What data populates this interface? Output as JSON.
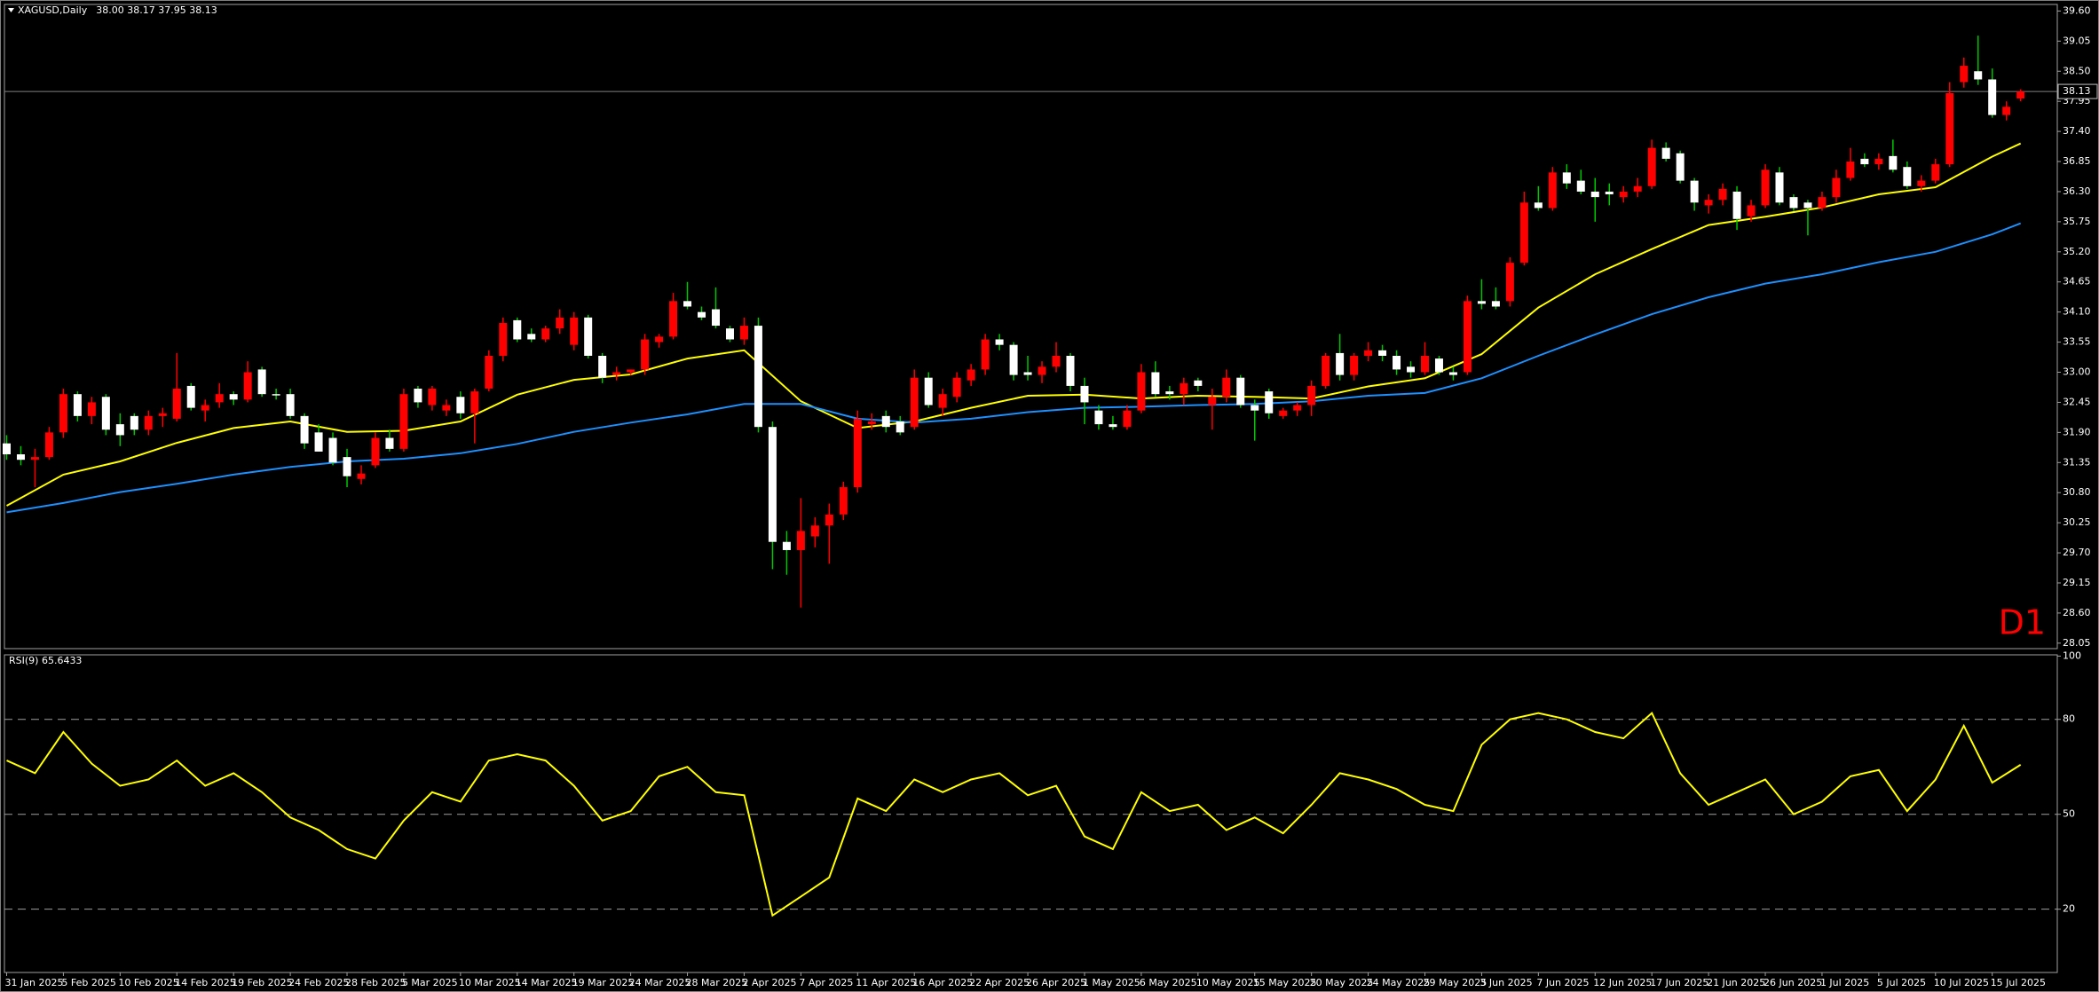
{
  "chart_data": [
    {
      "type": "candlestick",
      "title": "XAGUSD,Daily",
      "ohlc_text": "38.00 38.17 37.95 38.13",
      "timeframe_label": "D1",
      "ylim": [
        27.95,
        39.72
      ],
      "yticks": [
        {
          "value": 39.6,
          "label": "39.60"
        },
        39.05,
        {
          "value": 38.5,
          "label": "38.50"
        },
        37.95,
        {
          "value": 37.4,
          "label": "37.40"
        },
        36.85,
        {
          "value": 36.3,
          "label": "36.30"
        },
        35.75,
        {
          "value": 35.2,
          "label": "35.20"
        },
        34.65,
        {
          "value": 34.1,
          "label": "34.10"
        },
        33.55,
        {
          "value": 33,
          "label": "33.00"
        },
        32.45,
        {
          "value": 31.9,
          "label": "31.90"
        },
        31.35,
        {
          "value": 30.8,
          "label": "30.80"
        },
        30.25,
        {
          "value": 29.7,
          "label": "29.70"
        },
        29.15,
        {
          "value": 28.6,
          "label": "28.60"
        },
        28.05
      ],
      "price_line": 38.13,
      "up_color": "#ff0000",
      "down_color": "#ffffff",
      "up_wick_color": "#ff0000",
      "down_wick_color": "#00c800",
      "categories": [
        "31 Jan 2025",
        null,
        null,
        null,
        "5 Feb 2025",
        null,
        null,
        null,
        "10 Feb 2025",
        null,
        null,
        null,
        "14 Feb 2025",
        null,
        null,
        null,
        "19 Feb 2025",
        null,
        null,
        null,
        "24 Feb 2025",
        null,
        null,
        null,
        "28 Feb 2025",
        null,
        null,
        null,
        "5 Mar 2025",
        null,
        null,
        null,
        "10 Mar 2025",
        null,
        null,
        null,
        "14 Mar 2025",
        null,
        null,
        null,
        "19 Mar 2025",
        null,
        null,
        null,
        "24 Mar 2025",
        null,
        null,
        null,
        "28 Mar 2025",
        null,
        null,
        null,
        "2 Apr 2025",
        null,
        null,
        null,
        "7 Apr 2025",
        null,
        null,
        null,
        "11 Apr 2025",
        null,
        null,
        null,
        "16 Apr 2025",
        null,
        null,
        null,
        "22 Apr 2025",
        null,
        null,
        null,
        "26 Apr 2025",
        null,
        null,
        null,
        "1 May 2025",
        null,
        null,
        null,
        "6 May 2025",
        null,
        null,
        null,
        "10 May 2025",
        null,
        null,
        null,
        "15 May 2025",
        null,
        null,
        null,
        "20 May 2025",
        null,
        null,
        null,
        "24 May 2025",
        null,
        null,
        null,
        "29 May 2025",
        null,
        null,
        null,
        "3 Jun 2025",
        null,
        null,
        null,
        "7 Jun 2025",
        null,
        null,
        null,
        "12 Jun 2025",
        null,
        null,
        null,
        "17 Jun 2025",
        null,
        null,
        null,
        "21 Jun 2025",
        null,
        null,
        null,
        "26 Jun 2025",
        null,
        null,
        null,
        "1 Jul 2025",
        null,
        null,
        null,
        "5 Jul 2025",
        null,
        null,
        null,
        "10 Jul 2025",
        null,
        null,
        null,
        "15 Jul 2025",
        null,
        null
      ],
      "open": [
        31.7,
        31.5,
        31.4,
        31.45,
        31.9,
        32.6,
        32.2,
        32.55,
        32.05,
        32.2,
        31.95,
        32.2,
        32.15,
        32.75,
        32.3,
        32.45,
        32.6,
        32.5,
        33.05,
        32.6,
        32.6,
        32.2,
        31.9,
        31.8,
        31.45,
        31.05,
        31.3,
        31.8,
        31.6,
        32.7,
        32.4,
        32.3,
        32.55,
        32.25,
        32.7,
        33.3,
        33.95,
        33.7,
        33.6,
        33.8,
        33.5,
        34.0,
        33.3,
        32.95,
        33.0,
        33.05,
        33.55,
        33.65,
        34.3,
        34.1,
        34.15,
        33.8,
        33.6,
        33.85,
        32.0,
        29.9,
        29.75,
        30.0,
        30.2,
        30.4,
        30.9,
        32.05,
        32.2,
        32.1,
        32.0,
        32.9,
        32.35,
        32.55,
        32.85,
        33.05,
        33.6,
        33.5,
        33.0,
        32.95,
        33.1,
        33.3,
        32.75,
        32.3,
        32.05,
        32.0,
        32.3,
        33.0,
        32.65,
        32.6,
        32.85,
        32.4,
        32.55,
        32.9,
        32.4,
        32.65,
        32.2,
        32.3,
        32.4,
        32.75,
        33.35,
        32.95,
        33.3,
        33.4,
        33.3,
        33.1,
        33.0,
        33.25,
        33.0,
        33.0,
        34.3,
        34.3,
        34.3,
        35.0,
        36.1,
        36.0,
        36.65,
        36.5,
        36.3,
        36.3,
        36.2,
        36.3,
        36.4,
        37.1,
        37.0,
        36.5,
        36.05,
        36.15,
        36.3,
        35.85,
        36.05,
        36.65,
        36.2,
        36.1,
        36.0,
        36.2,
        36.55,
        36.9,
        36.8,
        36.95,
        36.75,
        36.4,
        36.5,
        36.8,
        38.3,
        38.5,
        38.35,
        37.7,
        38.0
      ],
      "high": [
        31.85,
        31.65,
        31.6,
        32.0,
        32.7,
        32.65,
        32.55,
        32.6,
        32.25,
        32.25,
        32.3,
        32.35,
        33.35,
        32.8,
        32.5,
        32.8,
        32.65,
        33.2,
        33.1,
        32.7,
        32.7,
        32.25,
        32.05,
        31.9,
        31.6,
        31.3,
        31.9,
        31.95,
        32.7,
        32.75,
        32.75,
        32.5,
        32.65,
        32.7,
        33.4,
        34.0,
        34.0,
        33.8,
        33.85,
        34.15,
        34.1,
        34.05,
        33.35,
        33.1,
        33.05,
        33.7,
        33.7,
        34.45,
        34.65,
        34.2,
        34.55,
        33.85,
        34.0,
        34.0,
        32.1,
        30.1,
        30.7,
        30.35,
        30.6,
        31.0,
        32.3,
        32.25,
        32.3,
        32.2,
        33.05,
        33.0,
        32.7,
        33.0,
        33.15,
        33.7,
        33.7,
        33.55,
        33.3,
        33.2,
        33.55,
        33.35,
        32.9,
        32.4,
        32.2,
        32.4,
        33.15,
        33.2,
        32.75,
        32.9,
        32.9,
        32.7,
        33.05,
        32.95,
        32.5,
        32.7,
        32.35,
        32.45,
        32.85,
        33.35,
        33.7,
        33.35,
        33.55,
        33.5,
        33.4,
        33.2,
        33.55,
        33.3,
        33.1,
        34.4,
        34.7,
        34.55,
        35.1,
        36.3,
        36.4,
        36.75,
        36.8,
        36.7,
        36.55,
        36.45,
        36.4,
        36.55,
        37.25,
        37.2,
        37.05,
        36.55,
        36.25,
        36.45,
        36.4,
        36.15,
        36.8,
        36.75,
        36.25,
        36.15,
        36.3,
        36.7,
        37.1,
        37.0,
        37.0,
        37.25,
        36.85,
        36.6,
        36.9,
        38.3,
        38.75,
        39.15,
        38.55,
        37.95,
        38.17
      ],
      "low": [
        31.4,
        31.3,
        30.9,
        31.4,
        31.8,
        32.1,
        32.05,
        31.85,
        31.65,
        31.85,
        31.85,
        32.0,
        32.1,
        32.3,
        32.1,
        32.35,
        32.4,
        32.45,
        32.55,
        32.5,
        32.15,
        31.6,
        31.55,
        31.3,
        30.9,
        30.95,
        31.25,
        31.55,
        31.55,
        32.35,
        32.3,
        32.2,
        32.15,
        31.7,
        32.65,
        33.2,
        33.55,
        33.55,
        33.55,
        33.7,
        33.4,
        33.25,
        32.8,
        32.85,
        32.95,
        32.95,
        33.45,
        33.6,
        34.15,
        33.95,
        33.8,
        33.55,
        33.5,
        31.9,
        29.4,
        29.3,
        28.7,
        29.8,
        29.5,
        30.3,
        30.8,
        31.95,
        31.9,
        31.85,
        31.95,
        32.35,
        32.2,
        32.45,
        32.75,
        32.95,
        33.4,
        32.85,
        32.85,
        32.8,
        33.0,
        32.65,
        32.05,
        31.95,
        31.95,
        31.95,
        32.25,
        32.55,
        32.5,
        32.4,
        32.65,
        31.95,
        32.45,
        32.35,
        31.75,
        32.15,
        32.15,
        32.2,
        32.2,
        32.7,
        32.85,
        32.85,
        33.2,
        33.2,
        32.95,
        32.9,
        32.95,
        32.95,
        32.85,
        32.95,
        34.15,
        34.15,
        34.2,
        34.95,
        35.95,
        35.95,
        36.35,
        36.25,
        35.75,
        36.05,
        36.1,
        36.2,
        36.35,
        36.85,
        36.45,
        35.95,
        35.9,
        36.05,
        35.6,
        35.75,
        36.0,
        36.05,
        35.95,
        35.5,
        35.95,
        36.1,
        36.5,
        36.75,
        36.7,
        36.65,
        36.35,
        36.3,
        36.45,
        36.75,
        38.2,
        38.25,
        37.65,
        37.6,
        37.95
      ],
      "close": [
        31.5,
        31.4,
        31.45,
        31.9,
        32.6,
        32.2,
        32.45,
        31.95,
        31.85,
        31.95,
        32.2,
        32.25,
        32.7,
        32.35,
        32.4,
        32.6,
        32.5,
        33.0,
        32.6,
        32.6,
        32.2,
        31.7,
        31.55,
        31.35,
        31.1,
        31.15,
        31.8,
        31.6,
        32.6,
        32.45,
        32.7,
        32.4,
        32.25,
        32.65,
        33.3,
        33.9,
        33.6,
        33.6,
        33.8,
        34.0,
        34.0,
        33.3,
        32.9,
        33.0,
        33.05,
        33.6,
        33.65,
        34.3,
        34.2,
        34.0,
        33.85,
        33.6,
        33.85,
        32.0,
        29.9,
        29.75,
        30.1,
        30.2,
        30.4,
        30.9,
        32.15,
        32.1,
        32.0,
        31.9,
        32.9,
        32.4,
        32.6,
        32.9,
        33.05,
        33.6,
        33.5,
        32.95,
        32.95,
        33.1,
        33.3,
        32.75,
        32.45,
        32.05,
        32.0,
        32.3,
        33.0,
        32.6,
        32.6,
        32.8,
        32.75,
        32.55,
        32.9,
        32.4,
        32.3,
        32.25,
        32.3,
        32.4,
        32.75,
        33.3,
        32.95,
        33.3,
        33.4,
        33.3,
        33.05,
        33.0,
        33.3,
        33.0,
        32.95,
        34.3,
        34.25,
        34.2,
        35.0,
        36.1,
        36.0,
        36.65,
        36.45,
        36.3,
        36.2,
        36.25,
        36.3,
        36.4,
        37.1,
        36.9,
        36.5,
        36.1,
        36.15,
        36.35,
        35.8,
        36.05,
        36.7,
        36.1,
        36.0,
        36.0,
        36.2,
        36.55,
        36.85,
        36.8,
        36.9,
        36.7,
        36.4,
        36.5,
        36.8,
        38.1,
        38.6,
        38.35,
        37.7,
        37.85,
        38.13
      ],
      "lines": [
        {
          "color": "#ffff00",
          "x": [
            0,
            4,
            8,
            12,
            16,
            20,
            24,
            28,
            32,
            36,
            40,
            44,
            48,
            52,
            56,
            60,
            64,
            68,
            72,
            76,
            80,
            84,
            88,
            92,
            96,
            100,
            104,
            108,
            112,
            116,
            120,
            124,
            128,
            132,
            136,
            140,
            142
          ],
          "values": [
            30.56,
            31.13,
            31.37,
            31.71,
            31.98,
            32.1,
            31.91,
            31.93,
            32.1,
            32.59,
            32.86,
            32.96,
            33.25,
            33.4,
            32.47,
            31.98,
            32.1,
            32.35,
            32.57,
            32.59,
            32.52,
            32.57,
            32.55,
            32.52,
            32.74,
            32.89,
            33.33,
            34.18,
            34.79,
            35.25,
            35.69,
            35.84,
            36.01,
            36.25,
            36.38,
            36.94,
            37.18
          ]
        },
        {
          "color": "#1e90ff",
          "x": [
            0,
            4,
            8,
            12,
            16,
            20,
            24,
            28,
            32,
            36,
            40,
            44,
            48,
            52,
            56,
            60,
            64,
            68,
            72,
            76,
            80,
            84,
            88,
            92,
            96,
            100,
            104,
            108,
            112,
            116,
            120,
            124,
            128,
            132,
            136,
            140,
            142
          ],
          "values": [
            30.44,
            30.61,
            30.81,
            30.96,
            31.13,
            31.27,
            31.37,
            31.42,
            31.52,
            31.69,
            31.91,
            32.08,
            32.23,
            32.42,
            32.42,
            32.15,
            32.08,
            32.15,
            32.27,
            32.35,
            32.37,
            32.4,
            32.42,
            32.47,
            32.57,
            32.62,
            32.89,
            33.3,
            33.69,
            34.06,
            34.37,
            34.62,
            34.79,
            35.01,
            35.2,
            35.52,
            35.72
          ]
        }
      ]
    },
    {
      "type": "line",
      "title": "RSI(9) 65.6433",
      "ylim": [
        0,
        100.4
      ],
      "yticks": [
        100,
        80,
        50,
        20
      ],
      "levels": [
        80,
        50,
        20
      ],
      "color": "#ffff00",
      "x": [
        0,
        2,
        4,
        6,
        8,
        10,
        12,
        14,
        16,
        18,
        20,
        22,
        24,
        26,
        28,
        30,
        32,
        34,
        36,
        38,
        40,
        42,
        44,
        46,
        48,
        50,
        52,
        54,
        56,
        58,
        60,
        62,
        64,
        66,
        68,
        70,
        72,
        74,
        76,
        78,
        80,
        82,
        84,
        86,
        88,
        90,
        92,
        94,
        96,
        98,
        100,
        102,
        104,
        106,
        108,
        110,
        112,
        114,
        116,
        118,
        120,
        122,
        124,
        126,
        128,
        130,
        132,
        134,
        136,
        138,
        140,
        142
      ],
      "values": [
        67,
        63,
        76,
        66,
        59,
        61,
        67,
        59,
        63,
        57,
        49,
        45,
        39,
        36,
        48,
        57,
        54,
        67,
        69,
        67,
        59,
        48,
        51,
        62,
        65,
        57,
        56,
        18,
        24,
        30,
        55,
        51,
        61,
        57,
        61,
        63,
        56,
        59,
        43,
        39,
        57,
        51,
        53,
        45,
        49,
        44,
        53,
        63,
        61,
        58,
        53,
        51,
        72,
        80,
        82,
        80,
        76,
        74,
        82,
        63,
        53,
        57,
        61,
        50,
        54,
        62,
        64,
        51,
        61,
        78,
        60,
        65.6433
      ]
    }
  ]
}
